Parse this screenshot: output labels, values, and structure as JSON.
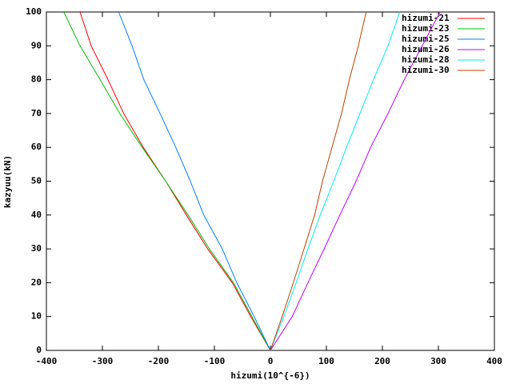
{
  "chart_data": {
    "type": "line",
    "x_label": "hizumi(10^{-6})",
    "y_label": "kazyuu(kN)",
    "xlim": [
      -400,
      400
    ],
    "ylim": [
      0,
      100
    ],
    "xticks": [
      -400,
      -300,
      -200,
      -100,
      0,
      100,
      200,
      300,
      400
    ],
    "yticks": [
      0,
      10,
      20,
      30,
      40,
      50,
      60,
      70,
      80,
      90,
      100
    ],
    "legend": "top-right",
    "series": [
      {
        "name": "hizumi-21",
        "color": "#ff0000",
        "x": [
          0,
          -35,
          -68,
          -112,
          -150,
          -187,
          -227,
          -262,
          -290,
          -320,
          -340
        ],
        "values": [
          0,
          10,
          20,
          30,
          40,
          50,
          60,
          70,
          80,
          90,
          100
        ]
      },
      {
        "name": "hizumi-23",
        "color": "#00c000",
        "x": [
          0,
          -33,
          -66,
          -109,
          -147,
          -187,
          -229,
          -269,
          -304,
          -340,
          -369
        ],
        "values": [
          0,
          10,
          20,
          30,
          40,
          50,
          60,
          70,
          80,
          90,
          100
        ]
      },
      {
        "name": "hizumi-25",
        "color": "#0080ff",
        "x": [
          0,
          -29,
          -60,
          -86,
          -119,
          -143,
          -169,
          -197,
          -226,
          -247,
          -271
        ],
        "values": [
          0,
          10,
          20,
          30,
          40,
          50,
          60,
          70,
          80,
          90,
          100
        ]
      },
      {
        "name": "hizumi-26",
        "color": "#c000ff",
        "x": [
          0,
          39,
          67,
          96,
          124,
          153,
          179,
          210,
          239,
          271,
          303
        ],
        "values": [
          0,
          10,
          20,
          30,
          40,
          50,
          60,
          70,
          80,
          90,
          100
        ]
      },
      {
        "name": "hizumi-28",
        "color": "#00eeee",
        "x": [
          0,
          24,
          46,
          67,
          89,
          113,
          136,
          160,
          184,
          210,
          231
        ],
        "values": [
          0,
          10,
          20,
          30,
          40,
          50,
          60,
          70,
          80,
          90,
          100
        ]
      },
      {
        "name": "hizumi-30",
        "color": "#c04000",
        "x": [
          0,
          21,
          41,
          60,
          79,
          93,
          110,
          127,
          141,
          157,
          171
        ],
        "values": [
          0,
          10,
          20,
          30,
          40,
          50,
          60,
          70,
          80,
          90,
          100
        ]
      }
    ]
  }
}
